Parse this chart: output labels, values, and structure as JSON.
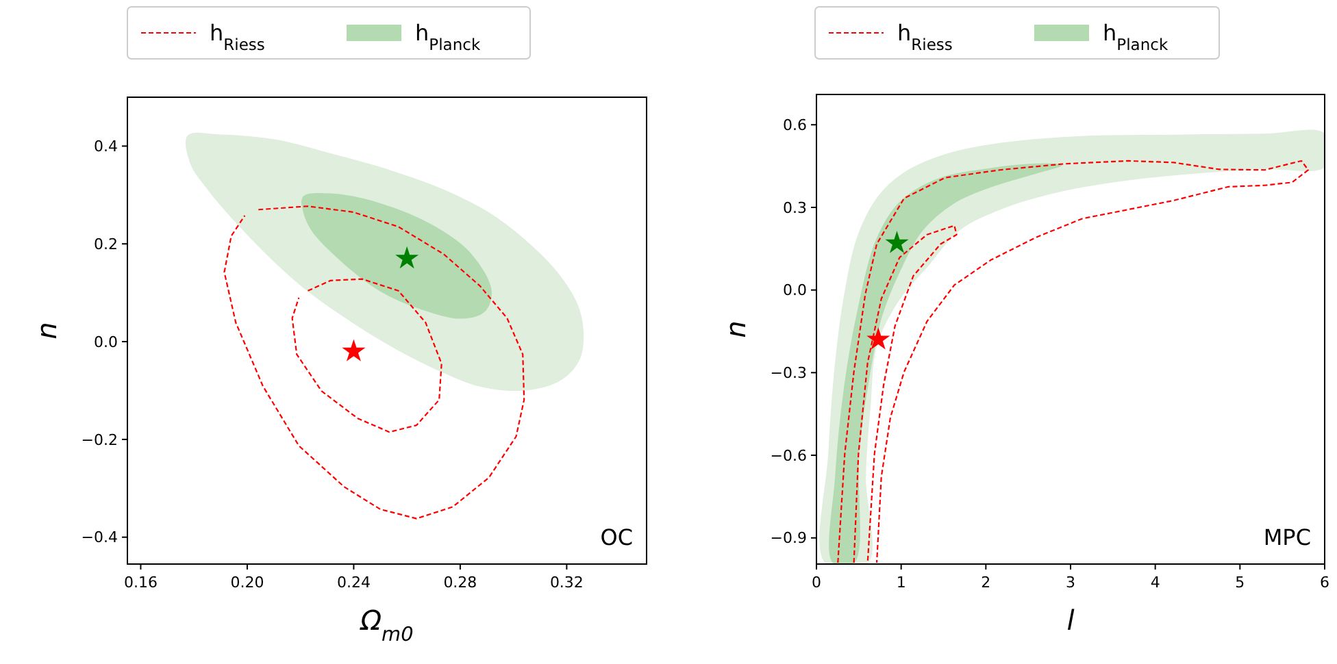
{
  "chart_data": [
    {
      "type": "line",
      "xlabel": "Ω$_{m0}$",
      "ylabel": "n",
      "legend": "top",
      "xlim": [
        0.155,
        0.35
      ],
      "ylim": [
        -0.455,
        0.5
      ],
      "xticks": [
        {
          "value": 0.16,
          "label": "0.16"
        },
        {
          "value": 0.2,
          "label": "0.20"
        },
        {
          "value": 0.24,
          "label": "0.24"
        },
        {
          "value": 0.28,
          "label": "0.28"
        },
        {
          "value": 0.32,
          "label": "0.32"
        }
      ],
      "yticks": [
        {
          "value": -0.4,
          "label": "−0.4"
        },
        {
          "value": -0.2,
          "label": "−0.2"
        },
        {
          "value": 0,
          "label": "0.0"
        },
        {
          "value": 0.2,
          "label": "0.2"
        },
        {
          "value": 0.4,
          "label": "0.4"
        }
      ],
      "annotations": [
        "OC"
      ],
      "series": [
        {
          "name": "h$_{Riess}$",
          "color": "#ff0000",
          "line_style": "dashed",
          "x": [
            0.2042,
            0.2228,
            0.2398,
            0.2568,
            0.2738,
            0.2874,
            0.2976,
            0.3035,
            0.304,
            0.301,
            0.2908,
            0.2772,
            0.2636,
            0.25,
            0.2364,
            0.2194,
            0.2059,
            0.1957,
            0.1914,
            0.194,
            0.1991
          ],
          "values": [
            0.27,
            0.277,
            0.265,
            0.235,
            0.179,
            0.114,
            0.048,
            -0.026,
            -0.119,
            -0.194,
            -0.278,
            -0.338,
            -0.362,
            -0.343,
            -0.297,
            -0.213,
            -0.091,
            0.039,
            0.142,
            0.216,
            0.258
          ]
        },
        {
          "color": "#ff0000",
          "line_style": "dashed",
          "x": [
            0.2228,
            0.2313,
            0.2432,
            0.2568,
            0.267,
            0.273,
            0.2721,
            0.2636,
            0.2534,
            0.2415,
            0.2279,
            0.2186,
            0.2169,
            0.2194
          ],
          "values": [
            0.104,
            0.125,
            0.128,
            0.104,
            0.039,
            -0.045,
            -0.119,
            -0.171,
            -0.185,
            -0.157,
            -0.101,
            -0.026,
            0.048,
            0.09
          ]
        },
        {
          "type": "area",
          "color": "#dfeedd",
          "x": [
            0.1778,
            0.1889,
            0.211,
            0.2313,
            0.25,
            0.2738,
            0.2908,
            0.3044,
            0.3163,
            0.3239,
            0.3261,
            0.3248,
            0.318,
            0.3044,
            0.2874,
            0.2738,
            0.2568,
            0.2398,
            0.2228,
            0.211,
            0.1974,
            0.1855,
            0.1787
          ],
          "values": [
            0.421,
            0.423,
            0.412,
            0.384,
            0.356,
            0.31,
            0.263,
            0.207,
            0.142,
            0.076,
            0.021,
            -0.035,
            -0.077,
            -0.099,
            -0.091,
            -0.063,
            -0.017,
            0.039,
            0.104,
            0.16,
            0.235,
            0.31,
            0.366
          ]
        },
        {
          "type": "area",
          "name": "h$_{Planck}$",
          "color": "#b3dab1",
          "x": [
            0.2211,
            0.2313,
            0.25,
            0.2704,
            0.284,
            0.2916,
            0.2891,
            0.2806,
            0.2653,
            0.25,
            0.2364,
            0.2245,
            0.2211
          ],
          "values": [
            0.296,
            0.302,
            0.282,
            0.235,
            0.179,
            0.104,
            0.062,
            0.048,
            0.067,
            0.104,
            0.16,
            0.226,
            0.268
          ]
        },
        {
          "type": "scatter",
          "marker": "star",
          "color": "#ff0000",
          "x": [
            0.24
          ],
          "values": [
            -0.02
          ]
        },
        {
          "type": "scatter",
          "marker": "star",
          "color": "#008000",
          "x": [
            0.26
          ],
          "values": [
            0.17
          ]
        }
      ]
    },
    {
      "type": "line",
      "xlabel": "l",
      "ylabel": "n",
      "legend": "top",
      "xlim": [
        0,
        6
      ],
      "ylim": [
        -0.995,
        0.71
      ],
      "xticks": [
        0,
        1,
        2,
        3,
        4,
        5,
        6
      ],
      "yticks": [
        {
          "value": -0.9,
          "label": "−0.9"
        },
        {
          "value": -0.6,
          "label": "−0.6"
        },
        {
          "value": -0.3,
          "label": "−0.3"
        },
        {
          "value": 0,
          "label": "0.0"
        },
        {
          "value": 0.3,
          "label": "0.3"
        },
        {
          "value": 0.6,
          "label": "0.6"
        }
      ],
      "annotations": [
        "MPC"
      ],
      "series": [
        {
          "name": "h$_{Riess}$",
          "color": "#ff0000",
          "line_style": "dashed",
          "x": [
            0.253,
            0.334,
            0.442,
            0.577,
            0.712,
            1.035,
            1.52,
            2.167,
            2.922,
            3.677,
            4.216,
            4.755,
            5.294,
            5.725,
            5.806,
            5.617,
            5.294,
            4.863,
            4.216,
            3.677,
            3.137,
            2.598,
            2.059,
            1.628,
            1.305,
            1.035,
            0.873,
            0.766,
            0.712
          ],
          "values": [
            -0.99,
            -0.595,
            -0.297,
            -0.015,
            0.167,
            0.333,
            0.408,
            0.436,
            0.458,
            0.469,
            0.463,
            0.438,
            0.436,
            0.469,
            0.436,
            0.391,
            0.38,
            0.375,
            0.325,
            0.292,
            0.259,
            0.192,
            0.109,
            0.018,
            -0.114,
            -0.297,
            -0.463,
            -0.678,
            -0.99
          ]
        },
        {
          "color": "#ff0000",
          "line_style": "dashed",
          "x": [
            0.442,
            0.496,
            0.604,
            0.766,
            0.981,
            1.305,
            1.628,
            1.655,
            1.466,
            1.143,
            0.927,
            0.792,
            0.685,
            0.604
          ],
          "values": [
            -0.99,
            -0.595,
            -0.264,
            -0.032,
            0.118,
            0.201,
            0.234,
            0.201,
            0.167,
            0.051,
            -0.131,
            -0.347,
            -0.595,
            -0.99
          ]
        },
        {
          "type": "area",
          "color": "#dfeedd",
          "x": [
            0.108,
            0.146,
            0.226,
            0.334,
            0.496,
            0.739,
            1.035,
            1.52,
            2.167,
            3.137,
            4.216,
            5.294,
            6,
            6,
            5.294,
            4.485,
            3.677,
            2.868,
            2.221,
            1.682,
            1.305,
            0.981,
            0.712,
            0.631,
            0.577,
            0.604
          ],
          "values": [
            -0.99,
            -0.594,
            -0.264,
            -0.015,
            0.201,
            0.342,
            0.425,
            0.491,
            0.532,
            0.557,
            0.562,
            0.566,
            0.566,
            0.449,
            0.441,
            0.425,
            0.4,
            0.358,
            0.3,
            0.217,
            0.085,
            -0.032,
            -0.197,
            -0.43,
            -0.678,
            -0.99
          ]
        },
        {
          "type": "area",
          "name": "h$_{Planck}$",
          "color": "#b3dab1",
          "x": [
            0.199,
            0.226,
            0.334,
            0.496,
            0.712,
            0.981,
            1.412,
            2.059,
            2.706,
            2.895,
            2.598,
            2.059,
            1.628,
            1.251,
            0.981,
            0.766,
            0.604,
            0.496,
            0.442
          ],
          "values": [
            -0.99,
            -0.678,
            -0.347,
            -0.065,
            0.184,
            0.317,
            0.4,
            0.441,
            0.458,
            0.453,
            0.425,
            0.375,
            0.317,
            0.217,
            0.068,
            -0.098,
            -0.347,
            -0.595,
            -0.99
          ]
        },
        {
          "type": "scatter",
          "marker": "star",
          "color": "#ff0000",
          "x": [
            0.73
          ],
          "values": [
            -0.18
          ]
        },
        {
          "type": "scatter",
          "marker": "star",
          "color": "#008000",
          "x": [
            0.95
          ],
          "values": [
            0.17
          ]
        }
      ]
    }
  ]
}
